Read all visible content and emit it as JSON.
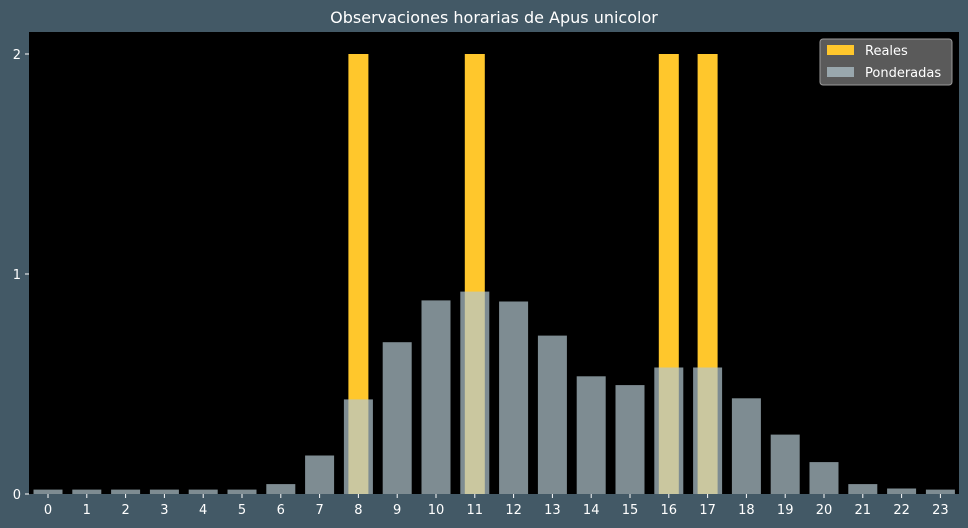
{
  "chart_data": {
    "type": "bar",
    "title": "Observaciones horarias de Apus unicolor",
    "xlabel": "",
    "ylabel": "",
    "categories": [
      "0",
      "1",
      "2",
      "3",
      "4",
      "5",
      "6",
      "7",
      "8",
      "9",
      "10",
      "11",
      "12",
      "13",
      "14",
      "15",
      "16",
      "17",
      "18",
      "19",
      "20",
      "21",
      "22",
      "23"
    ],
    "yticks": [
      "0",
      "1",
      "2"
    ],
    "ylim": [
      0,
      2.1
    ],
    "grid": false,
    "legend_position": "top-right",
    "series": [
      {
        "name": "Reales",
        "color": "#ffc72c",
        "values": [
          0,
          0,
          0,
          0,
          0,
          0,
          0,
          0,
          2,
          0,
          0,
          2,
          0,
          0,
          0,
          0,
          2,
          2,
          0,
          0,
          0,
          0,
          0,
          0
        ]
      },
      {
        "name": "Ponderadas",
        "color": "#b3c7d0",
        "opacity": 0.7,
        "values": [
          0.02,
          0.02,
          0.02,
          0.02,
          0.02,
          0.02,
          0.045,
          0.175,
          0.43,
          0.69,
          0.88,
          0.92,
          0.875,
          0.72,
          0.535,
          0.495,
          0.575,
          0.575,
          0.435,
          0.27,
          0.145,
          0.045,
          0.025,
          0.02
        ]
      }
    ]
  },
  "colors": {
    "background": "#435966",
    "plot_background": "#000000",
    "text": "#ffffff",
    "legend_background": "#5a5a5a"
  }
}
